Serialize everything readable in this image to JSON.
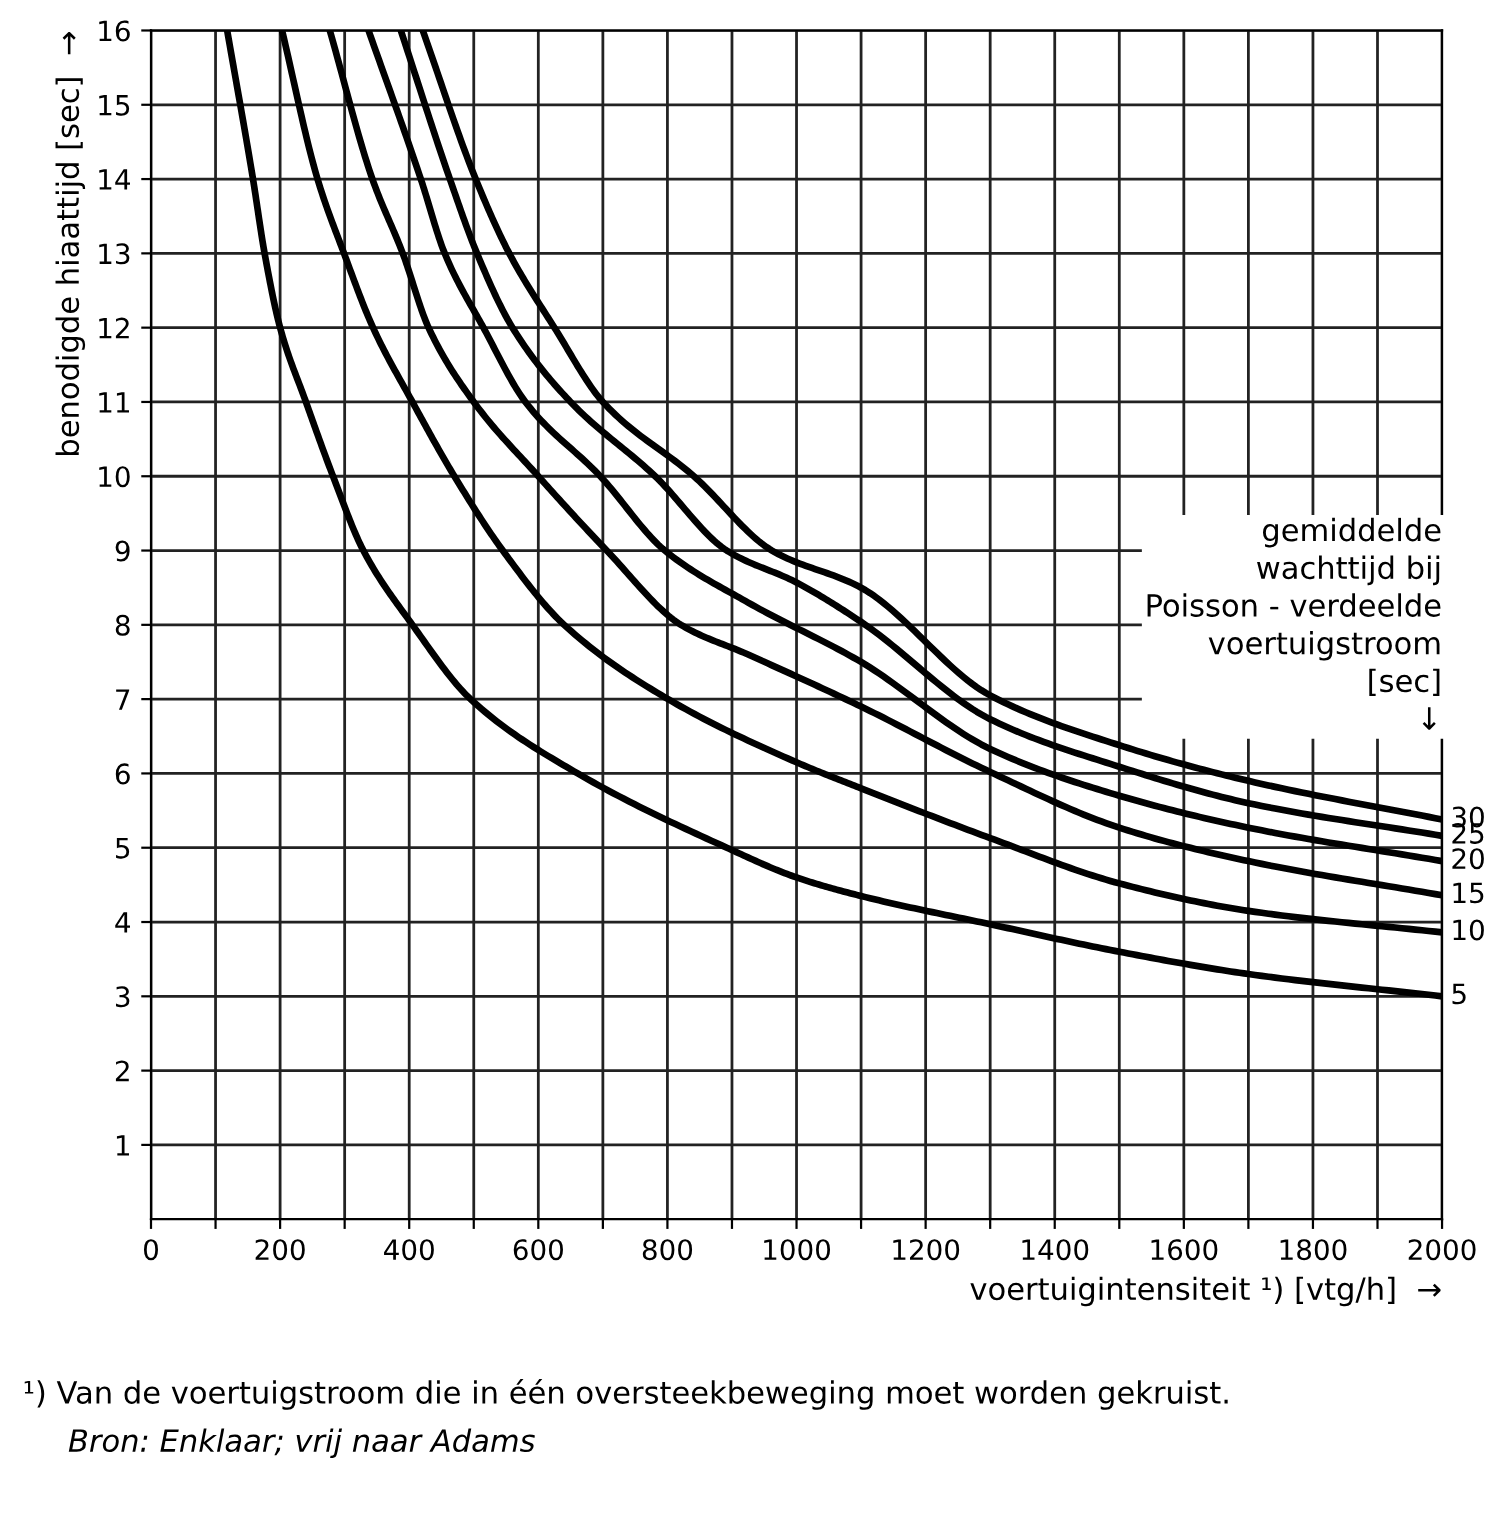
{
  "chart_data": {
    "type": "line",
    "xlabel": "voertuigintensiteit ¹) [vtg/h]  →",
    "ylabel": "benodigde hiaattijd [sec]  →",
    "legend_title": "gemiddelde\nwachttijd bij\nPoisson - verdeelde\nvoertuigstroom\n[sec]\n↓",
    "series": [
      {
        "name": "30",
        "color": "#000000",
        "x": [
          421,
          503,
          555,
          625,
          700,
          841,
          962,
          1100,
          1300,
          1500,
          1700,
          2000
        ],
        "values": [
          16,
          14,
          13,
          12,
          11,
          10,
          9,
          8.5,
          7.05,
          6.38,
          5.9,
          5.38
        ]
      },
      {
        "name": "25",
        "color": "#000000",
        "x": [
          387,
          463,
          505,
          560,
          650,
          781,
          892,
          1000,
          1100,
          1300,
          1500,
          1700,
          2000
        ],
        "values": [
          16,
          14,
          13,
          12,
          11,
          10,
          9,
          8.57,
          8.04,
          6.73,
          6.09,
          5.6,
          5.16
        ]
      },
      {
        "name": "20",
        "color": "#000000",
        "x": [
          337,
          418,
          455,
          515,
          580,
          696,
          796,
          925,
          1100,
          1300,
          1500,
          1700,
          2000
        ],
        "values": [
          16,
          14,
          13,
          12,
          11,
          10,
          9,
          8.3,
          7.5,
          6.33,
          5.7,
          5.27,
          4.82
        ]
      },
      {
        "name": "15",
        "color": "#000000",
        "x": [
          277,
          343,
          390,
          430,
          500,
          600,
          706,
          821,
          925,
          1100,
          1300,
          1500,
          1700,
          2000
        ],
        "values": [
          16,
          14,
          13,
          12,
          11,
          10,
          9,
          8,
          7.6,
          6.9,
          6.02,
          5.27,
          4.82,
          4.36
        ]
      },
      {
        "name": "10",
        "color": "#000000",
        "x": [
          203,
          258,
          299,
          344,
          405,
          470,
          545,
          640,
          801,
          1000,
          1100,
          1300,
          1500,
          1700,
          2000
        ],
        "values": [
          16,
          14,
          13,
          12,
          11,
          10,
          9,
          8,
          7,
          6.15,
          5.8,
          5.13,
          4.52,
          4.15,
          3.86
        ]
      },
      {
        "name": "5",
        "color": "#000000",
        "x": [
          118,
          158,
          176,
          200,
          240,
          282,
          329,
          405,
          495,
          661,
          892,
          1000,
          1100,
          1300,
          1500,
          1700,
          2000
        ],
        "values": [
          16,
          14,
          13,
          12,
          11,
          10,
          9,
          8,
          7,
          6,
          5,
          4.6,
          4.35,
          3.97,
          3.6,
          3.3,
          3.0
        ]
      }
    ],
    "xlim": [
      0,
      2000
    ],
    "ylim": [
      0,
      16
    ],
    "xticks": [
      0,
      {
        "value": 100,
        "label": null
      },
      200,
      {
        "value": 300,
        "label": null
      },
      400,
      {
        "value": 500,
        "label": null
      },
      600,
      {
        "value": 700,
        "label": null
      },
      800,
      {
        "value": 900,
        "label": null
      },
      1000,
      {
        "value": 1100,
        "label": null
      },
      1200,
      {
        "value": 1300,
        "label": null
      },
      1400,
      {
        "value": 1500,
        "label": null
      },
      1600,
      {
        "value": 1700,
        "label": null
      },
      1800,
      {
        "value": 1900,
        "label": null
      },
      2000
    ],
    "yticks": [
      1,
      2,
      3,
      4,
      5,
      6,
      7,
      8,
      9,
      10,
      11,
      12,
      13,
      14,
      15,
      16
    ],
    "grid": true,
    "marker": "none",
    "line_style": "solid",
    "legend": false,
    "annotations": [
      "¹) Van de voertuigstroom die in één oversteekbeweging moet worden gekruist.",
      "Bron: Enklaar; vrij naar Adams"
    ]
  }
}
